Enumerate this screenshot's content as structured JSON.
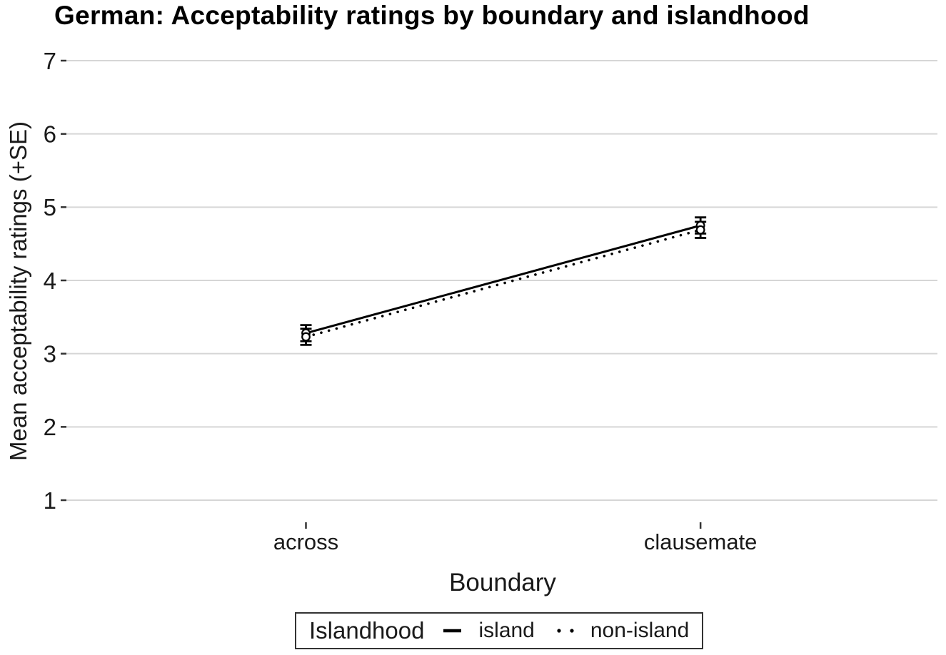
{
  "chart_data": {
    "type": "line",
    "title": "German: Acceptability ratings by boundary and islandhood",
    "xlabel": "Boundary",
    "ylabel": "Mean acceptability ratings (+SE)",
    "categories": [
      "across",
      "clausemate"
    ],
    "y_ticks": [
      1,
      2,
      3,
      4,
      5,
      6,
      7
    ],
    "ylim": [
      1,
      7
    ],
    "grid": "horizontal-only",
    "legend_title": "Islandhood",
    "legend_position": "bottom",
    "error_bars": "plus-minus SE with caps",
    "marker": "open-circle",
    "series": [
      {
        "name": "island",
        "line_style": "solid",
        "values": [
          3.28,
          4.75
        ],
        "se": [
          0.11,
          0.11
        ]
      },
      {
        "name": "non-island",
        "line_style": "dotted",
        "values": [
          3.23,
          4.69
        ],
        "se": [
          0.11,
          0.11
        ]
      }
    ],
    "colors": {
      "line": "#000000",
      "marker_fill": "#ffffff",
      "text": "#1a1a1a",
      "gridline": "#d6d6d6",
      "tick_mark": "#333333",
      "background": "#ffffff",
      "legend_border": "#333333"
    }
  }
}
